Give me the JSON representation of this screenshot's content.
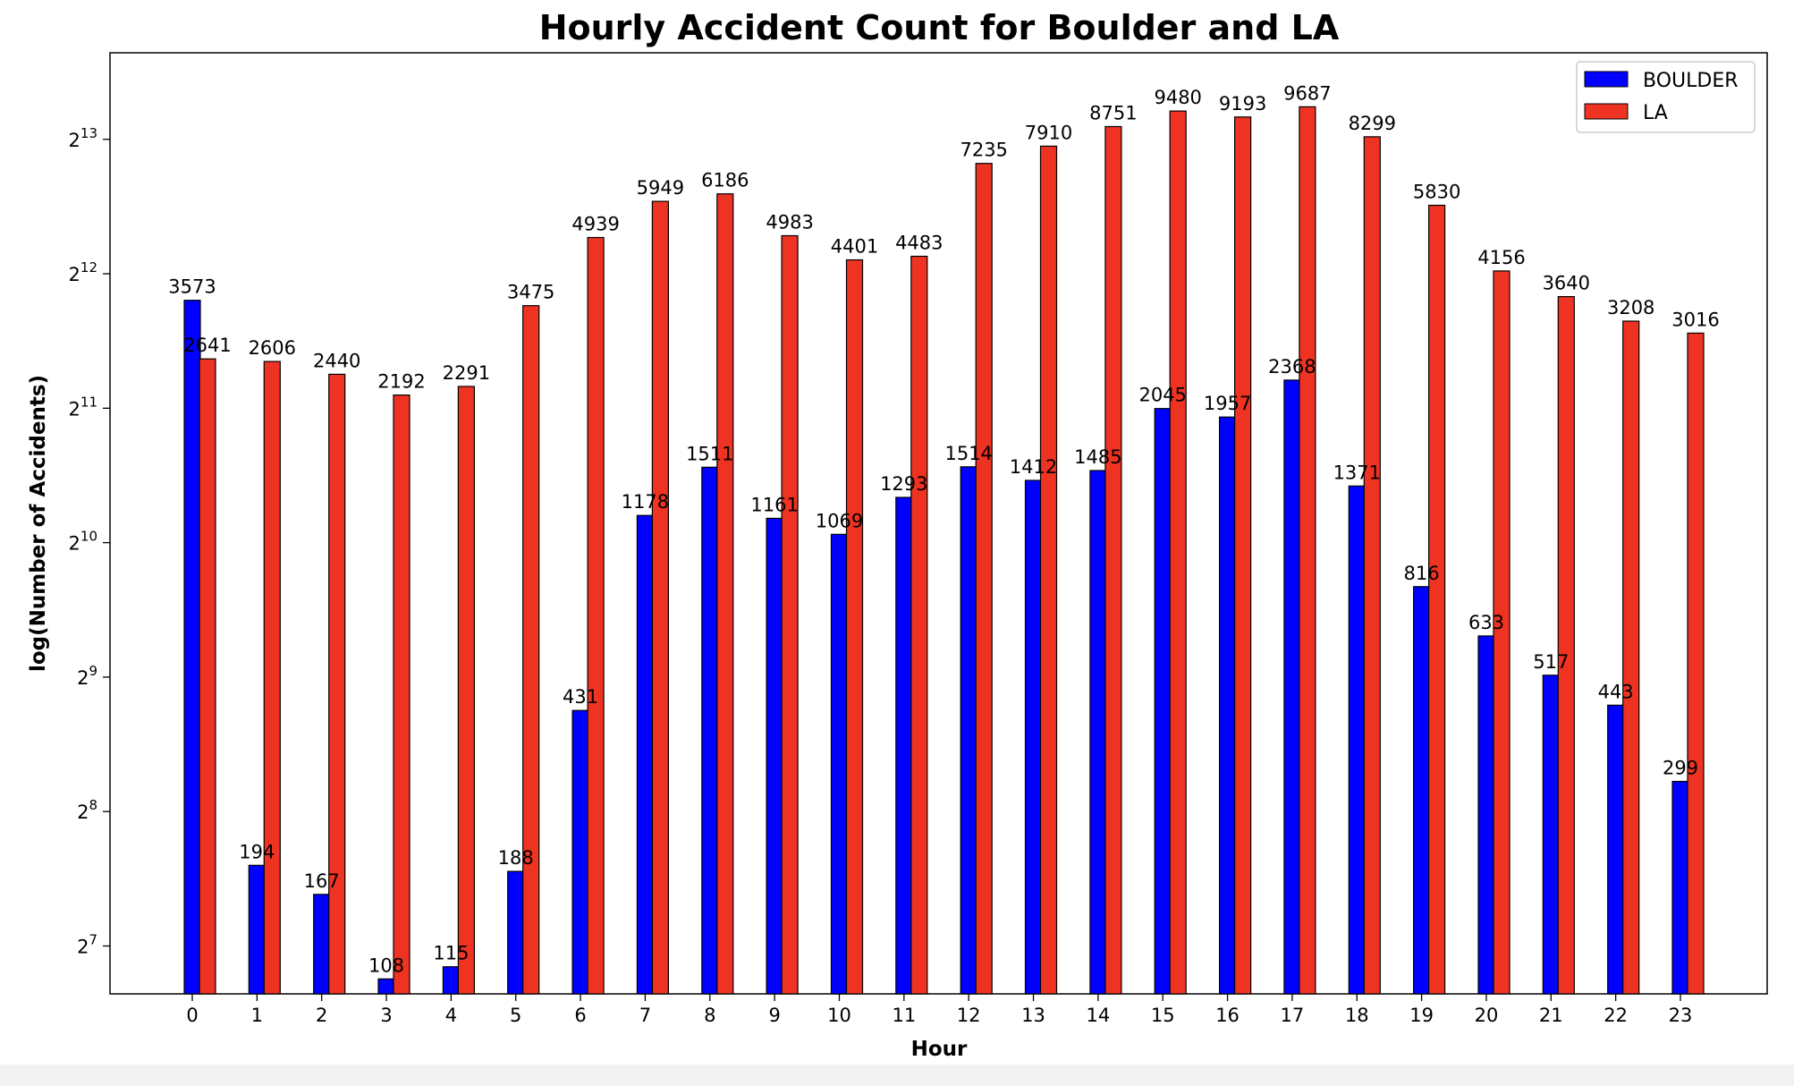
{
  "chart_data": {
    "type": "bar",
    "title": "Hourly Accident Count for Boulder and LA",
    "xlabel": "Hour",
    "ylabel": "log(Number of Accidents)",
    "yscale": "log2",
    "ylim": [
      100,
      12800
    ],
    "yticks": [
      {
        "base": "2",
        "exp": "7"
      },
      {
        "base": "2",
        "exp": "8"
      },
      {
        "base": "2",
        "exp": "9"
      },
      {
        "base": "2",
        "exp": "10"
      },
      {
        "base": "2",
        "exp": "11"
      },
      {
        "base": "2",
        "exp": "12"
      },
      {
        "base": "2",
        "exp": "13"
      }
    ],
    "categories": [
      "0",
      "1",
      "2",
      "3",
      "4",
      "5",
      "6",
      "7",
      "8",
      "9",
      "10",
      "11",
      "12",
      "13",
      "14",
      "15",
      "16",
      "17",
      "18",
      "19",
      "20",
      "21",
      "22",
      "23"
    ],
    "series": [
      {
        "name": "BOULDER",
        "color": "#0000ff",
        "values": [
          3573,
          194,
          167,
          108,
          115,
          188,
          431,
          1178,
          1511,
          1161,
          1069,
          1293,
          1514,
          1412,
          1485,
          2045,
          1957,
          2368,
          1371,
          816,
          633,
          517,
          443,
          299
        ]
      },
      {
        "name": "LA",
        "color": "#ee3322",
        "values": [
          2641,
          2606,
          2440,
          2192,
          2291,
          3475,
          4939,
          5949,
          6186,
          4983,
          4401,
          4483,
          7235,
          7910,
          8751,
          9480,
          9193,
          9687,
          8299,
          5830,
          4156,
          3640,
          3208,
          3016
        ]
      }
    ],
    "grid": false,
    "legend_position": "top-right"
  }
}
